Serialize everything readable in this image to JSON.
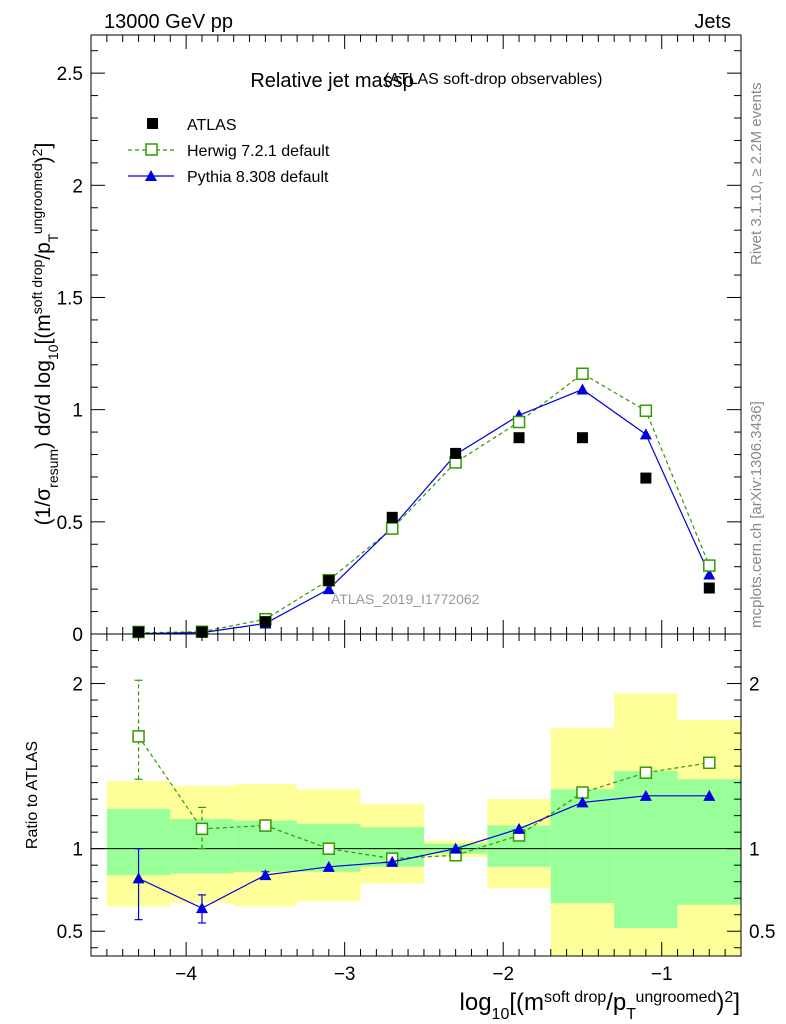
{
  "header": {
    "left": "13000 GeV pp",
    "right": "Jets"
  },
  "side_labels": {
    "rivet": "Rivet 3.1.10, ≥ 2.2M events",
    "mcplots": "mcplots.cern.ch [arXiv:1306.3436]"
  },
  "watermark": "ATLAS_2019_I1772062",
  "chart_data": [
    {
      "type": "scatter",
      "panel": "main",
      "title": "Relative jet massρ",
      "subtitle": "(ATLAS soft-drop observables)",
      "ylabel": "(1/σ_resum) dσ/d log10[(m^soft drop/p_T^ungroomed)^2]",
      "ylim": [
        0,
        2.67
      ],
      "yticks": [
        0,
        0.5,
        1,
        1.5,
        2,
        2.5
      ],
      "ytick_labels": [
        "0",
        "0.5",
        "1",
        "1.5",
        "2",
        "2.5"
      ],
      "xlim": [
        -4.6,
        -0.5
      ],
      "x": [
        -4.3,
        -3.9,
        -3.5,
        -3.1,
        -2.7,
        -2.3,
        -1.9,
        -1.5,
        -1.1,
        -0.7
      ],
      "series": [
        {
          "name": "ATLAS",
          "color": "#000000",
          "marker": "square",
          "values": [
            0.003,
            0.009,
            0.055,
            0.238,
            0.52,
            0.805,
            0.875,
            0.875,
            0.695,
            0.205
          ]
        },
        {
          "name": "Herwig 7.2.1 default",
          "color": "#339900",
          "marker": "open-square",
          "line": "dashed",
          "values": [
            0.005,
            0.01,
            0.066,
            0.24,
            0.47,
            0.765,
            0.945,
            1.16,
            0.995,
            0.305
          ]
        },
        {
          "name": "Pythia 8.308 default",
          "color": "#0000dd",
          "marker": "triangle",
          "line": "solid",
          "values": [
            0.002,
            0.006,
            0.047,
            0.2,
            0.475,
            0.8,
            0.975,
            1.09,
            0.89,
            0.265
          ]
        }
      ],
      "legend": "top-left"
    },
    {
      "type": "scatter",
      "panel": "ratio",
      "ylabel": "Ratio to ATLAS",
      "xlabel": "log10[(m^soft drop/p_T^ungroomed)^2]",
      "ylim": [
        0.35,
        2.3
      ],
      "yticks": [
        0.5,
        1,
        2
      ],
      "ytick_labels": [
        "0.5",
        "1",
        "2"
      ],
      "xlim": [
        -4.6,
        -0.5
      ],
      "xticks": [
        -4,
        -3,
        -2,
        -1
      ],
      "xtick_labels": [
        "−4",
        "−3",
        "−2",
        "−1"
      ],
      "bands": {
        "edges": [
          -4.5,
          -4.1,
          -3.7,
          -3.3,
          -2.9,
          -2.5,
          -2.1,
          -1.7,
          -1.3,
          -0.9,
          -0.5
        ],
        "green_low": [
          0.84,
          0.85,
          0.86,
          0.86,
          0.89,
          0.97,
          0.89,
          0.67,
          0.52,
          0.66
        ],
        "green_high": [
          1.24,
          1.18,
          1.17,
          1.15,
          1.13,
          1.03,
          1.14,
          1.36,
          1.47,
          1.42
        ],
        "yellow_low": [
          0.65,
          0.67,
          0.65,
          0.68,
          0.79,
          0.95,
          0.76,
          0.31,
          0.31,
          0.31
        ],
        "yellow_high": [
          1.41,
          1.38,
          1.39,
          1.36,
          1.27,
          1.05,
          1.3,
          1.73,
          1.94,
          1.78
        ]
      },
      "series": [
        {
          "name": "Herwig 7.2.1 default",
          "color": "#339900",
          "marker": "open-square",
          "line": "dashed",
          "values": [
            1.68,
            1.12,
            1.14,
            1.0,
            0.94,
            0.96,
            1.08,
            1.34,
            1.46,
            1.52
          ],
          "err_low": [
            1.42,
            1.0,
            1.11,
            1.0,
            0.94,
            0.96,
            1.08,
            1.34,
            1.46,
            1.52
          ],
          "err_high": [
            2.02,
            1.25,
            1.17,
            1.0,
            0.94,
            0.96,
            1.08,
            1.34,
            1.46,
            1.52
          ]
        },
        {
          "name": "Pythia 8.308 default",
          "color": "#0000dd",
          "marker": "triangle",
          "line": "solid",
          "values": [
            0.82,
            0.64,
            0.84,
            0.89,
            0.92,
            1.0,
            1.12,
            1.28,
            1.32,
            1.32
          ],
          "err_low": [
            0.57,
            0.55,
            0.82,
            0.89,
            0.92,
            1.0,
            1.12,
            1.28,
            1.32,
            1.32
          ],
          "err_high": [
            1.0,
            0.72,
            0.86,
            0.89,
            0.92,
            1.0,
            1.12,
            1.28,
            1.32,
            1.32
          ]
        }
      ]
    }
  ]
}
